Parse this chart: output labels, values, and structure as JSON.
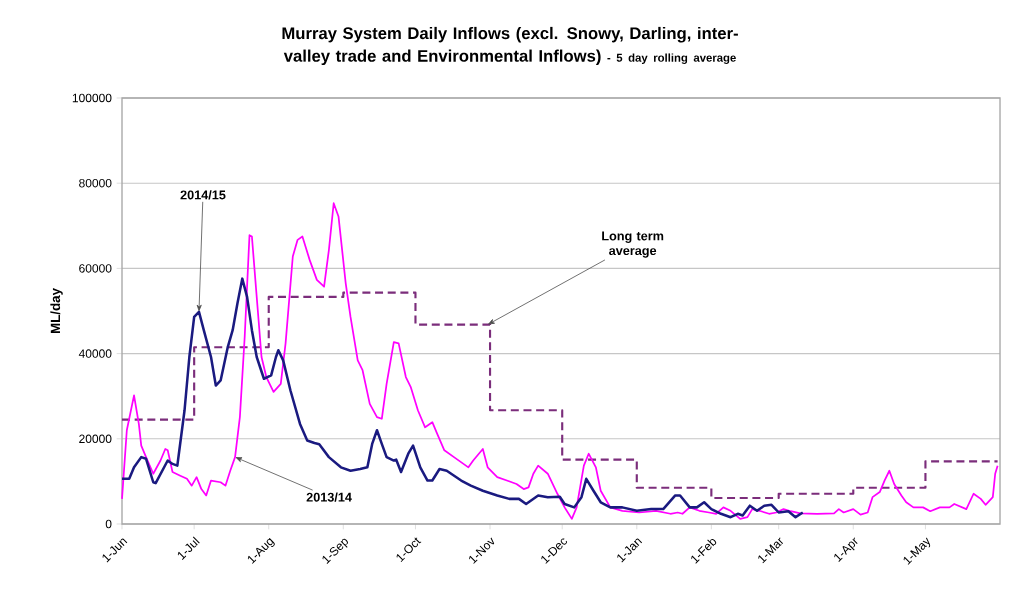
{
  "chart_data": {
    "type": "line",
    "title": "Murray System Daily Inflows (excl. Snowy, Darling, inter-valley trade and Environmental Inflows)",
    "subtitle": "- 5 day rolling average",
    "ylabel": "ML/day",
    "xlim": [
      "2014-06-01",
      "2015-06-01"
    ],
    "ylim": [
      0,
      100000
    ],
    "xticks": [
      {
        "value": "2014-06-01",
        "label": "1-Jun"
      },
      {
        "value": "2014-07-01",
        "label": "1-Jul"
      },
      {
        "value": "2014-08-01",
        "label": "1-Aug"
      },
      {
        "value": "2014-09-01",
        "label": "1-Sep"
      },
      {
        "value": "2014-10-01",
        "label": "1-Oct"
      },
      {
        "value": "2014-11-01",
        "label": "1-Nov"
      },
      {
        "value": "2014-12-01",
        "label": "1-Dec"
      },
      {
        "value": "2015-01-01",
        "label": "1-Jan"
      },
      {
        "value": "2015-02-01",
        "label": "1-Feb"
      },
      {
        "value": "2015-03-01",
        "label": "1-Mar"
      },
      {
        "value": "2015-04-01",
        "label": "1-Apr"
      },
      {
        "value": "2015-05-01",
        "label": "1-May"
      }
    ],
    "yticks": [
      0,
      20000,
      40000,
      60000,
      80000,
      100000
    ],
    "grid": "y",
    "series": [
      {
        "type": "step",
        "color": "#7b2d7b",
        "line_style": "dashed",
        "x": [
          "2014-06-01",
          "2014-07-01",
          "2014-08-01",
          "2014-09-01",
          "2014-10-01",
          "2014-11-01",
          "2014-12-01",
          "2015-01-01",
          "2015-02-01",
          "2015-03-01",
          "2015-04-01",
          "2015-05-01",
          "2015-05-31"
        ],
        "values": [
          24500,
          41500,
          53300,
          54300,
          46800,
          26700,
          15100,
          8500,
          6100,
          7100,
          8500,
          14700,
          14700
        ]
      },
      {
        "color": "#ff00ff",
        "x": [
          "2014-06-01",
          "2014-06-03",
          "2014-06-06",
          "2014-06-08",
          "2014-06-09",
          "2014-06-11",
          "2014-06-14",
          "2014-06-17",
          "2014-06-19",
          "2014-06-20",
          "2014-06-22",
          "2014-06-25",
          "2014-06-28",
          "2014-06-30",
          "2014-07-02",
          "2014-07-04",
          "2014-07-06",
          "2014-07-08",
          "2014-07-12",
          "2014-07-14",
          "2014-07-16",
          "2014-07-18",
          "2014-07-20",
          "2014-07-22",
          "2014-07-24",
          "2014-07-25",
          "2014-07-27",
          "2014-07-29",
          "2014-07-31",
          "2014-08-03",
          "2014-08-06",
          "2014-08-08",
          "2014-08-11",
          "2014-08-13",
          "2014-08-15",
          "2014-08-18",
          "2014-08-21",
          "2014-08-24",
          "2014-08-26",
          "2014-08-28",
          "2014-08-30",
          "2014-09-02",
          "2014-09-04",
          "2014-09-07",
          "2014-09-09",
          "2014-09-12",
          "2014-09-15",
          "2014-09-17",
          "2014-09-19",
          "2014-09-22",
          "2014-09-24",
          "2014-09-27",
          "2014-09-29",
          "2014-10-02",
          "2014-10-05",
          "2014-10-08",
          "2014-10-10",
          "2014-10-13",
          "2014-10-17",
          "2014-10-23",
          "2014-10-25",
          "2014-10-29",
          "2014-10-31",
          "2014-11-04",
          "2014-11-08",
          "2014-11-12",
          "2014-11-15",
          "2014-11-17",
          "2014-11-19",
          "2014-11-21",
          "2014-11-25",
          "2014-11-29",
          "2014-12-02",
          "2014-12-05",
          "2014-12-07",
          "2014-12-10",
          "2014-12-12",
          "2014-12-15",
          "2014-12-17",
          "2014-12-21",
          "2014-12-26",
          "2015-01-02",
          "2015-01-09",
          "2015-01-15",
          "2015-01-18",
          "2015-01-20",
          "2015-01-23",
          "2015-01-27",
          "2015-01-31",
          "2015-02-03",
          "2015-02-06",
          "2015-02-09",
          "2015-02-13",
          "2015-02-16",
          "2015-02-18",
          "2015-02-21",
          "2015-02-25",
          "2015-02-28",
          "2015-03-03",
          "2015-03-06",
          "2015-03-10",
          "2015-03-17",
          "2015-03-24",
          "2015-03-26",
          "2015-03-28",
          "2015-04-01",
          "2015-04-04",
          "2015-04-07",
          "2015-04-09",
          "2015-04-12",
          "2015-04-14",
          "2015-04-16",
          "2015-04-18",
          "2015-04-21",
          "2015-04-23",
          "2015-04-26",
          "2015-04-30",
          "2015-05-03",
          "2015-05-07",
          "2015-05-11",
          "2015-05-13",
          "2015-05-18",
          "2015-05-21",
          "2015-05-24",
          "2015-05-26",
          "2015-05-29",
          "2015-05-30",
          "2015-05-31"
        ],
        "values": [
          5900,
          22000,
          30200,
          23500,
          18400,
          15700,
          11800,
          14900,
          17600,
          17300,
          12200,
          11400,
          10600,
          9000,
          11000,
          8200,
          6700,
          10200,
          9800,
          9000,
          12500,
          15700,
          25100,
          43900,
          67800,
          67500,
          53300,
          39200,
          34500,
          31000,
          32900,
          42400,
          62800,
          66700,
          67500,
          62000,
          57300,
          55700,
          64300,
          75300,
          72200,
          56500,
          48600,
          38400,
          36100,
          28200,
          25100,
          24700,
          32900,
          42700,
          42400,
          34500,
          32200,
          26700,
          22700,
          23900,
          21200,
          17300,
          15700,
          13300,
          14900,
          17600,
          13300,
          11000,
          10200,
          9400,
          8200,
          8600,
          11800,
          13700,
          11800,
          7100,
          3900,
          1200,
          3900,
          13700,
          16500,
          13300,
          7800,
          3900,
          3100,
          2700,
          3100,
          2400,
          2700,
          2400,
          3900,
          3100,
          2700,
          2400,
          3900,
          3100,
          1200,
          1600,
          3500,
          3100,
          2400,
          2700,
          3500,
          3000,
          2500,
          2400,
          2500,
          3500,
          2700,
          3500,
          2200,
          2700,
          6300,
          7500,
          10200,
          12500,
          9400,
          6700,
          5100,
          3900,
          3900,
          3000,
          3900,
          3900,
          4700,
          3500,
          7100,
          5900,
          4500,
          6300,
          11800,
          13700
        ]
      },
      {
        "color": "#1a1a80",
        "x": [
          "2014-06-01",
          "2014-06-04",
          "2014-06-06",
          "2014-06-09",
          "2014-06-11",
          "2014-06-14",
          "2014-06-15",
          "2014-06-20",
          "2014-06-22",
          "2014-06-24",
          "2014-06-27",
          "2014-06-29",
          "2014-07-01",
          "2014-07-03",
          "2014-07-05",
          "2014-07-08",
          "2014-07-10",
          "2014-07-12",
          "2014-07-15",
          "2014-07-17",
          "2014-07-19",
          "2014-07-21",
          "2014-07-23",
          "2014-07-25",
          "2014-07-27",
          "2014-07-30",
          "2014-08-02",
          "2014-08-04",
          "2014-08-05",
          "2014-08-07",
          "2014-08-10",
          "2014-08-14",
          "2014-08-17",
          "2014-08-20",
          "2014-08-22",
          "2014-08-26",
          "2014-08-31",
          "2014-09-04",
          "2014-09-08",
          "2014-09-11",
          "2014-09-13",
          "2014-09-15",
          "2014-09-17",
          "2014-09-19",
          "2014-09-22",
          "2014-09-23",
          "2014-09-25",
          "2014-09-28",
          "2014-09-30",
          "2014-10-03",
          "2014-10-06",
          "2014-10-08",
          "2014-10-11",
          "2014-10-14",
          "2014-10-20",
          "2014-10-24",
          "2014-10-29",
          "2014-11-04",
          "2014-11-09",
          "2014-11-13",
          "2014-11-16",
          "2014-11-21",
          "2014-11-25",
          "2014-11-30",
          "2014-12-02",
          "2014-12-06",
          "2014-12-09",
          "2014-12-11",
          "2014-12-14",
          "2014-12-17",
          "2014-12-21",
          "2014-12-26",
          "2015-01-01",
          "2015-01-07",
          "2015-01-12",
          "2015-01-17",
          "2015-01-19",
          "2015-01-23",
          "2015-01-26",
          "2015-01-29",
          "2015-02-01",
          "2015-02-05",
          "2015-02-09",
          "2015-02-12",
          "2015-02-14",
          "2015-02-17",
          "2015-02-20",
          "2015-02-23",
          "2015-02-26",
          "2015-03-01",
          "2015-03-05",
          "2015-03-08",
          "2015-03-11"
        ],
        "values": [
          10600,
          10600,
          13300,
          15700,
          15300,
          9800,
          9600,
          14900,
          14100,
          13700,
          26700,
          39200,
          48600,
          49800,
          45500,
          39200,
          32500,
          33700,
          41600,
          45500,
          51800,
          57600,
          53300,
          45500,
          39200,
          34100,
          34900,
          39200,
          40800,
          38400,
          31400,
          23500,
          19600,
          19000,
          18700,
          15700,
          13300,
          12500,
          12900,
          13300,
          18800,
          22000,
          18800,
          15700,
          14900,
          15100,
          12200,
          16500,
          18400,
          13300,
          10200,
          10200,
          12900,
          12500,
          10200,
          9000,
          7800,
          6700,
          5900,
          5900,
          4700,
          6700,
          6300,
          6400,
          4700,
          3900,
          6300,
          10600,
          7800,
          5100,
          3900,
          3900,
          3100,
          3500,
          3500,
          6700,
          6700,
          3900,
          3900,
          5100,
          3500,
          2400,
          1600,
          2400,
          2000,
          4300,
          3100,
          4300,
          4500,
          2700,
          3000,
          1600,
          2700
        ]
      }
    ],
    "annotations": [
      {
        "text": "2014/15",
        "x": "2014-07-03",
        "y": 49800
      },
      {
        "text": "2013/14",
        "x": "2014-07-18",
        "y": 15700
      },
      {
        "text": "Long term average",
        "x": "2014-10-31",
        "y": 46800
      }
    ]
  }
}
